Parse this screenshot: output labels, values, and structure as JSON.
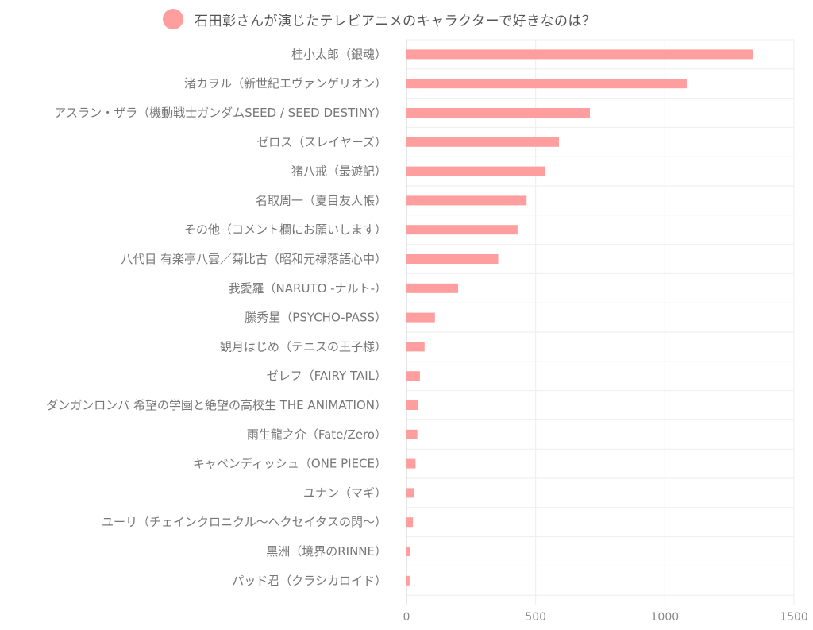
{
  "chart_data": {
    "type": "bar",
    "orientation": "horizontal",
    "title": "",
    "xlabel": "",
    "ylabel": "",
    "xlim": [
      0,
      1500
    ],
    "xticks": [
      0,
      500,
      1000,
      1500
    ],
    "grid": true,
    "legend_position": "top",
    "series": [
      {
        "name": "石田彰さんが演じたテレビアニメのキャラクターで好きなのは？",
        "color": "#ff9e9e",
        "values": [
          1340,
          1085,
          710,
          590,
          535,
          465,
          430,
          355,
          200,
          110,
          70,
          52,
          46,
          42,
          35,
          28,
          25,
          14,
          12
        ]
      }
    ],
    "categories": [
      "桂小太郎（銀魂）",
      "渚カヲル（新世紀エヴァンゲリオン）",
      "アスラン・ザラ（機動戦士ガンダムSEED / SEED DESTINY）",
      "ゼロス（スレイヤーズ）",
      "猪八戒（最遊記）",
      "名取周一（夏目友人帳）",
      "その他（コメント欄にお願いします）",
      "八代目 有楽亭八雲／菊比古（昭和元禄落語心中）",
      "我愛羅（NARUTO -ナルト-）",
      "縢秀星（PSYCHO-PASS）",
      "観月はじめ（テニスの王子様）",
      "ゼレフ（FAIRY TAIL）",
      "ダンガンロンパ 希望の学園と絶望の高校生 THE ANIMATION）",
      "雨生龍之介（Fate/Zero）",
      "キャベンディッシュ（ONE PIECE）",
      "ユナン（マギ）",
      "ユーリ（チェインクロニクル〜ヘクセイタスの閃〜）",
      "黒洲（境界のRINNE）",
      "パッド君（クラシカロイド）"
    ]
  }
}
